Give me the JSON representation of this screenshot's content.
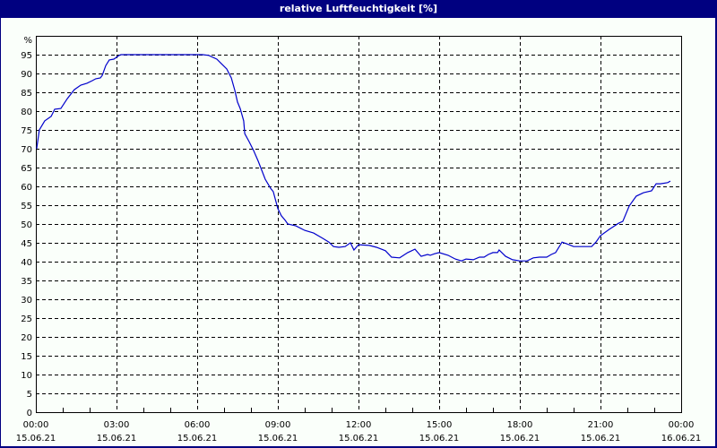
{
  "window": {
    "title": "relative Luftfeuchtigkeit [%]"
  },
  "colors": {
    "frame": "#000080",
    "background": "#fafffa",
    "line": "#0000cc",
    "grid": "#000000"
  },
  "chart_data": {
    "type": "line",
    "title": "relative Luftfeuchtigkeit [%]",
    "xlabel": "",
    "ylabel": "%",
    "ylim": [
      0,
      100
    ],
    "xlim_hours": [
      0,
      24
    ],
    "grid": true,
    "grid_style": "dashed",
    "legend": null,
    "y_ticks": [
      0,
      5,
      10,
      15,
      20,
      25,
      30,
      35,
      40,
      45,
      50,
      55,
      60,
      65,
      70,
      75,
      80,
      85,
      90,
      95
    ],
    "y_unit_label": "%",
    "x_ticks": [
      {
        "time": "00:00",
        "date": "15.06.21",
        "hour": 0
      },
      {
        "time": "03:00",
        "date": "15.06.21",
        "hour": 3
      },
      {
        "time": "06:00",
        "date": "15.06.21",
        "hour": 6
      },
      {
        "time": "09:00",
        "date": "15.06.21",
        "hour": 9
      },
      {
        "time": "12:00",
        "date": "15.06.21",
        "hour": 12
      },
      {
        "time": "15:00",
        "date": "15.06.21",
        "hour": 15
      },
      {
        "time": "18:00",
        "date": "15.06.21",
        "hour": 18
      },
      {
        "time": "21:00",
        "date": "15.06.21",
        "hour": 21
      },
      {
        "time": "00:00",
        "date": "16.06.21",
        "hour": 24
      }
    ],
    "series": [
      {
        "name": "relative Luftfeuchtigkeit",
        "x_hours": [
          0.03,
          0.13,
          0.33,
          0.57,
          0.7,
          0.93,
          1.17,
          1.43,
          1.67,
          1.9,
          2.1,
          2.23,
          2.4,
          2.47,
          2.6,
          2.73,
          2.9,
          3.1,
          3.17,
          6.2,
          6.43,
          6.73,
          6.9,
          7.1,
          7.27,
          7.4,
          7.5,
          7.6,
          7.73,
          7.77,
          7.93,
          8.1,
          8.27,
          8.4,
          8.53,
          8.73,
          8.83,
          9.0,
          9.13,
          9.27,
          9.37,
          9.67,
          10.0,
          10.33,
          10.67,
          10.9,
          11.07,
          11.27,
          11.5,
          11.7,
          11.83,
          12.0,
          12.4,
          12.67,
          13.0,
          13.23,
          13.53,
          13.83,
          14.1,
          14.33,
          14.57,
          14.67,
          14.83,
          15.0,
          15.33,
          15.6,
          15.83,
          16.0,
          16.27,
          16.5,
          16.67,
          16.83,
          17.0,
          17.17,
          17.23,
          17.47,
          17.73,
          18.0,
          18.27,
          18.5,
          18.73,
          19.0,
          19.17,
          19.33,
          19.57,
          19.83,
          20.0,
          20.33,
          20.67,
          20.83,
          21.0,
          21.33,
          21.67,
          21.83,
          22.07,
          22.33,
          22.6,
          22.9,
          23.07,
          23.23,
          23.5,
          23.6
        ],
        "values": [
          70.0,
          75.0,
          77.4,
          78.6,
          80.5,
          80.7,
          83.3,
          85.7,
          86.9,
          87.4,
          88.1,
          88.6,
          88.8,
          89.5,
          92.1,
          93.6,
          93.8,
          94.8,
          95.0,
          95.0,
          94.8,
          93.8,
          92.6,
          91.2,
          88.8,
          85.5,
          82.4,
          80.7,
          77.4,
          74.0,
          71.9,
          69.5,
          66.7,
          64.3,
          61.9,
          59.5,
          58.6,
          54.1,
          52.2,
          51.0,
          50.0,
          49.5,
          48.3,
          47.6,
          46.2,
          45.2,
          44.0,
          43.8,
          44.0,
          45.0,
          43.1,
          44.5,
          44.3,
          43.8,
          42.9,
          41.2,
          41.0,
          42.4,
          43.3,
          41.4,
          41.9,
          41.7,
          42.1,
          42.4,
          41.7,
          40.7,
          40.2,
          40.7,
          40.5,
          41.2,
          41.2,
          41.9,
          42.4,
          42.4,
          43.1,
          41.4,
          40.5,
          40.2,
          40.2,
          41.0,
          41.2,
          41.2,
          41.9,
          42.4,
          45.2,
          44.5,
          44.0,
          44.0,
          44.0,
          45.2,
          46.9,
          48.6,
          50.2,
          50.7,
          54.8,
          57.4,
          58.3,
          58.8,
          60.7,
          60.7,
          61.0,
          61.4
        ]
      }
    ]
  }
}
